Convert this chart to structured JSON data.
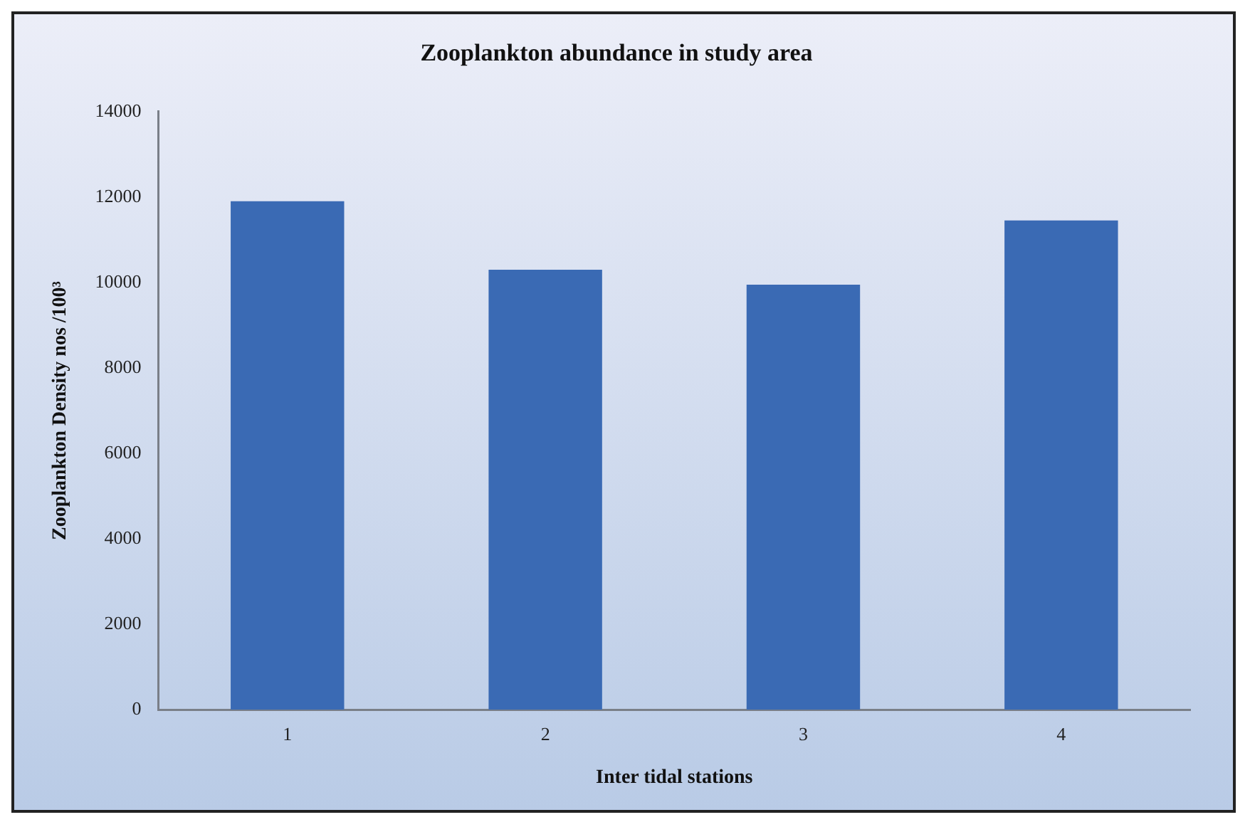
{
  "chart_data": {
    "type": "bar",
    "title": "Zooplankton abundance in study area",
    "xlabel": "Inter tidal stations",
    "ylabel": "Zooplankton Density nos /100³",
    "categories": [
      "1",
      "2",
      "3",
      "4"
    ],
    "values": [
      11900,
      10300,
      9950,
      11450
    ],
    "color": "#3a6ab4",
    "ylim": [
      0,
      14000
    ],
    "yticks": [
      0,
      2000,
      4000,
      6000,
      8000,
      10000,
      12000,
      14000
    ],
    "grid": false,
    "legend": false
  }
}
